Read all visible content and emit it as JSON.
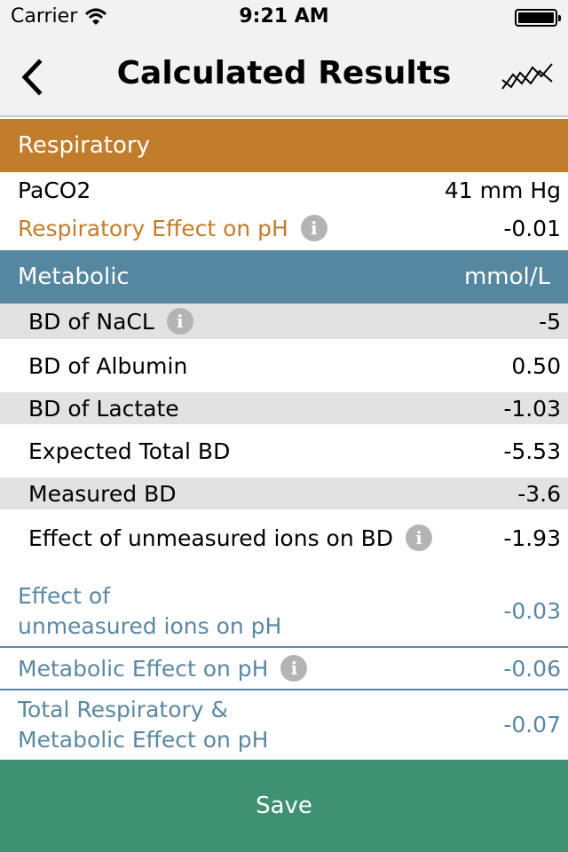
{
  "status_bar": {
    "carrier": "Carrier",
    "time": "9:21 AM"
  },
  "nav": {
    "title": "Calculated Results"
  },
  "respiratory": {
    "header": "Respiratory",
    "rows": [
      {
        "label": "PaCO2",
        "value": "41 mm Hg"
      },
      {
        "label": "Respiratory Effect on pH",
        "value": "-0.01"
      }
    ]
  },
  "metabolic": {
    "header": "Metabolic",
    "unit": "mmol/L",
    "rows": [
      {
        "label": "BD of NaCL",
        "value": "-5"
      },
      {
        "label": "BD of Albumin",
        "value": "0.50"
      },
      {
        "label": "BD of Lactate",
        "value": "-1.03"
      },
      {
        "label": "Expected Total BD",
        "value": "-5.53"
      },
      {
        "label": "Measured BD",
        "value": "-3.6"
      },
      {
        "label": "Effect of unmeasured ions on BD",
        "value": "-1.93"
      }
    ]
  },
  "effects": [
    {
      "label_line1": "Effect of",
      "label_line2": "unmeasured ions on pH",
      "value": "-0.03"
    },
    {
      "label": "Metabolic Effect on pH",
      "value": "-0.06"
    },
    {
      "label_line1": "Total Respiratory &",
      "label_line2": "Metabolic Effect on pH",
      "value": "-0.07"
    }
  ],
  "save_label": "Save",
  "colors": {
    "respiratory": "#c27d2c",
    "metabolic": "#5687a0",
    "save": "#3e9172"
  }
}
